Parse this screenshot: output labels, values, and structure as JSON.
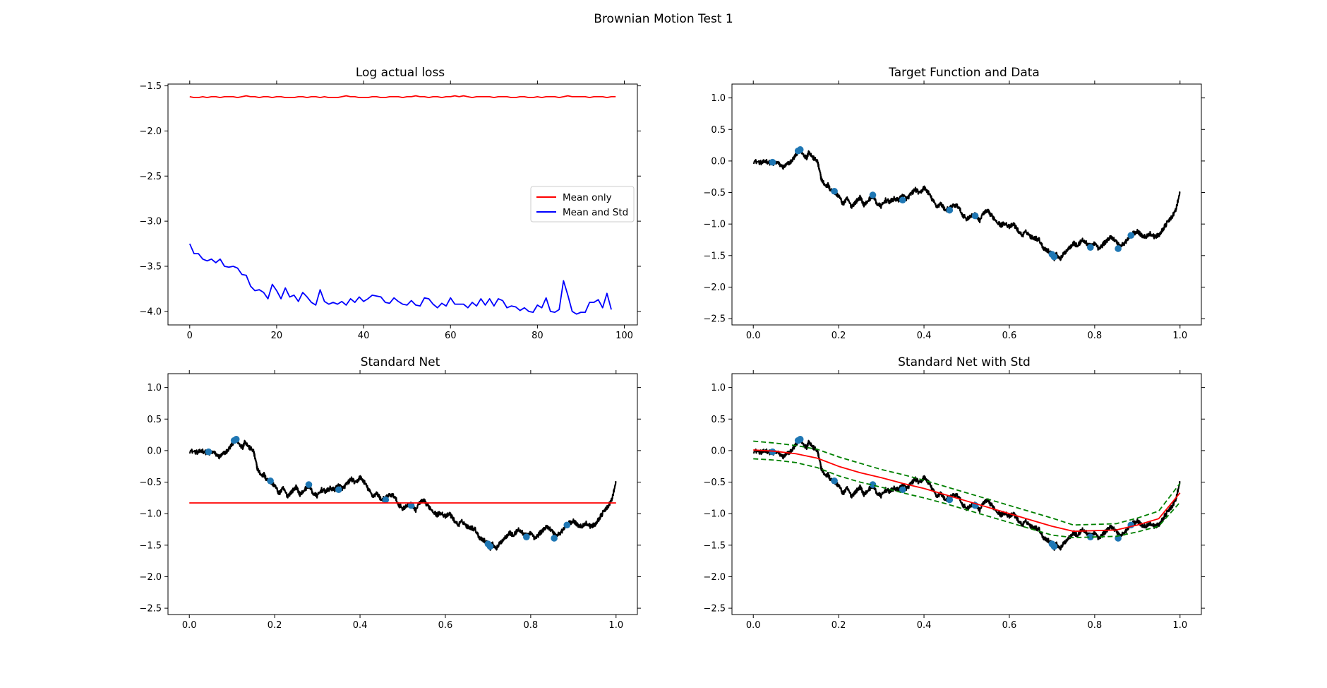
{
  "figure": {
    "title": "Brownian Motion Test 1"
  },
  "chart_data": [
    {
      "id": "loss",
      "type": "line",
      "title": "Log actual loss",
      "xlim": [
        -5,
        103
      ],
      "ylim": [
        -4.15,
        -1.48
      ],
      "xticks": [
        0,
        20,
        40,
        60,
        80,
        100
      ],
      "yticks": [
        -1.5,
        -2.0,
        -2.5,
        -3.0,
        -3.5,
        -4.0
      ],
      "legend": {
        "position": "center-right"
      },
      "series": [
        {
          "name": "Mean only",
          "color": "#ff0000",
          "values": [
            -1.62,
            -1.63,
            -1.63,
            -1.62,
            -1.63,
            -1.62,
            -1.62,
            -1.63,
            -1.62,
            -1.62,
            -1.62,
            -1.63,
            -1.62,
            -1.61,
            -1.62,
            -1.62,
            -1.63,
            -1.62,
            -1.62,
            -1.63,
            -1.62,
            -1.62,
            -1.63,
            -1.63,
            -1.63,
            -1.62,
            -1.62,
            -1.63,
            -1.62,
            -1.62,
            -1.63,
            -1.62,
            -1.63,
            -1.63,
            -1.63,
            -1.62,
            -1.61,
            -1.62,
            -1.62,
            -1.63,
            -1.63,
            -1.63,
            -1.62,
            -1.62,
            -1.63,
            -1.63,
            -1.62,
            -1.62,
            -1.62,
            -1.63,
            -1.62,
            -1.62,
            -1.61,
            -1.62,
            -1.62,
            -1.63,
            -1.62,
            -1.62,
            -1.63,
            -1.62,
            -1.62,
            -1.61,
            -1.62,
            -1.61,
            -1.62,
            -1.63,
            -1.62,
            -1.62,
            -1.62,
            -1.62,
            -1.63,
            -1.62,
            -1.62,
            -1.62,
            -1.63,
            -1.63,
            -1.62,
            -1.62,
            -1.63,
            -1.63,
            -1.62,
            -1.63,
            -1.62,
            -1.62,
            -1.62,
            -1.63,
            -1.62,
            -1.61,
            -1.62,
            -1.62,
            -1.62,
            -1.62,
            -1.63,
            -1.62,
            -1.62,
            -1.62,
            -1.63,
            -1.62,
            -1.62
          ]
        },
        {
          "name": "Mean and Std",
          "color": "#0000ff",
          "values": [
            -3.25,
            -3.36,
            -3.36,
            -3.42,
            -3.44,
            -3.42,
            -3.46,
            -3.42,
            -3.5,
            -3.51,
            -3.5,
            -3.52,
            -3.59,
            -3.6,
            -3.72,
            -3.77,
            -3.76,
            -3.79,
            -3.86,
            -3.7,
            -3.77,
            -3.86,
            -3.74,
            -3.84,
            -3.82,
            -3.89,
            -3.79,
            -3.84,
            -3.9,
            -3.93,
            -3.76,
            -3.89,
            -3.92,
            -3.9,
            -3.92,
            -3.89,
            -3.93,
            -3.86,
            -3.9,
            -3.84,
            -3.89,
            -3.86,
            -3.82,
            -3.83,
            -3.84,
            -3.9,
            -3.91,
            -3.85,
            -3.89,
            -3.92,
            -3.93,
            -3.88,
            -3.93,
            -3.94,
            -3.85,
            -3.86,
            -3.92,
            -3.96,
            -3.91,
            -3.94,
            -3.85,
            -3.92,
            -3.92,
            -3.92,
            -3.96,
            -3.9,
            -3.94,
            -3.86,
            -3.93,
            -3.86,
            -3.94,
            -3.86,
            -3.88,
            -3.96,
            -3.94,
            -3.95,
            -3.99,
            -3.96,
            -4.0,
            -4.01,
            -3.93,
            -3.96,
            -3.85,
            -4.0,
            -4.01,
            -3.98,
            -3.66,
            -3.82,
            -4.0,
            -4.03,
            -4.01,
            -4.01,
            -3.9,
            -3.9,
            -3.87,
            -3.96,
            -3.8,
            -3.98
          ]
        }
      ]
    },
    {
      "id": "target",
      "type": "line",
      "title": "Target Function and Data",
      "xlim": [
        -0.05,
        1.05
      ],
      "ylim": [
        -2.6,
        1.22
      ],
      "xticks": [
        0.0,
        0.2,
        0.4,
        0.6,
        0.8,
        1.0
      ],
      "yticks": [
        1.0,
        0.5,
        0.0,
        -0.5,
        -1.0,
        -1.5,
        -2.0,
        -2.5
      ],
      "series": [
        {
          "name": "",
          "kind": "path",
          "color": "#000000",
          "x": [
            0.0,
            0.02,
            0.03,
            0.045,
            0.055,
            0.07,
            0.08,
            0.09,
            0.1,
            0.105,
            0.11,
            0.115,
            0.125,
            0.13,
            0.14,
            0.15,
            0.155,
            0.16,
            0.17,
            0.175,
            0.18,
            0.19,
            0.2,
            0.21,
            0.22,
            0.23,
            0.24,
            0.25,
            0.26,
            0.27,
            0.28,
            0.29,
            0.3,
            0.31,
            0.32,
            0.33,
            0.34,
            0.35,
            0.36,
            0.37,
            0.38,
            0.39,
            0.4,
            0.41,
            0.42,
            0.43,
            0.44,
            0.45,
            0.46,
            0.47,
            0.48,
            0.49,
            0.5,
            0.51,
            0.52,
            0.53,
            0.54,
            0.55,
            0.56,
            0.57,
            0.58,
            0.59,
            0.6,
            0.61,
            0.62,
            0.63,
            0.64,
            0.65,
            0.66,
            0.67,
            0.68,
            0.69,
            0.7,
            0.705,
            0.71,
            0.72,
            0.73,
            0.74,
            0.75,
            0.76,
            0.77,
            0.78,
            0.79,
            0.8,
            0.81,
            0.82,
            0.83,
            0.84,
            0.85,
            0.86,
            0.87,
            0.88,
            0.89,
            0.9,
            0.91,
            0.92,
            0.93,
            0.94,
            0.95,
            0.96,
            0.97,
            0.98,
            0.99,
            1.0
          ],
          "y": [
            0.0,
            -0.03,
            0.0,
            -0.05,
            -0.02,
            -0.1,
            -0.05,
            0.0,
            0.1,
            0.16,
            0.2,
            0.12,
            0.05,
            0.15,
            0.05,
            0.0,
            -0.15,
            -0.3,
            -0.4,
            -0.38,
            -0.45,
            -0.5,
            -0.55,
            -0.68,
            -0.6,
            -0.72,
            -0.65,
            -0.58,
            -0.7,
            -0.62,
            -0.55,
            -0.68,
            -0.72,
            -0.62,
            -0.65,
            -0.6,
            -0.62,
            -0.55,
            -0.6,
            -0.52,
            -0.45,
            -0.52,
            -0.42,
            -0.5,
            -0.62,
            -0.72,
            -0.68,
            -0.78,
            -0.75,
            -0.7,
            -0.72,
            -0.85,
            -0.92,
            -0.88,
            -0.85,
            -0.95,
            -0.82,
            -0.8,
            -0.88,
            -0.95,
            -1.02,
            -0.98,
            -1.05,
            -1.0,
            -1.1,
            -1.18,
            -1.12,
            -1.2,
            -1.22,
            -1.25,
            -1.38,
            -1.42,
            -1.48,
            -1.55,
            -1.48,
            -1.55,
            -1.45,
            -1.38,
            -1.3,
            -1.35,
            -1.25,
            -1.3,
            -1.35,
            -1.3,
            -1.4,
            -1.32,
            -1.25,
            -1.2,
            -1.28,
            -1.35,
            -1.3,
            -1.22,
            -1.15,
            -1.12,
            -1.18,
            -1.2,
            -1.15,
            -1.2,
            -1.18,
            -1.08,
            -0.98,
            -0.9,
            -0.78,
            -0.5
          ]
        },
        {
          "name": "",
          "kind": "points",
          "color": "#1f77b4",
          "x": [
            0.045,
            0.105,
            0.11,
            0.19,
            0.28,
            0.35,
            0.46,
            0.52,
            0.7,
            0.705,
            0.79,
            0.855,
            0.885
          ],
          "y": [
            -0.02,
            0.16,
            0.18,
            -0.48,
            -0.54,
            -0.62,
            -0.78,
            -0.87,
            -1.48,
            -1.52,
            -1.37,
            -1.39,
            -1.18
          ]
        }
      ]
    },
    {
      "id": "standard",
      "type": "line",
      "title": "Standard Net",
      "xlim": [
        -0.05,
        1.05
      ],
      "ylim": [
        -2.6,
        1.22
      ],
      "xticks": [
        0.0,
        0.2,
        0.4,
        0.6,
        0.8,
        1.0
      ],
      "yticks": [
        1.0,
        0.5,
        0.0,
        -0.5,
        -1.0,
        -1.5,
        -2.0,
        -2.5
      ],
      "series": [
        {
          "name": "",
          "kind": "path",
          "ref": "target-path",
          "color": "#000000"
        },
        {
          "name": "",
          "kind": "points",
          "ref": "target-points",
          "color": "#1f77b4"
        },
        {
          "name": "",
          "kind": "line",
          "color": "#ff0000",
          "x": [
            0.0,
            1.0
          ],
          "y": [
            -0.83,
            -0.83
          ]
        }
      ]
    },
    {
      "id": "withstd",
      "type": "line",
      "title": "Standard Net with Std",
      "xlim": [
        -0.05,
        1.05
      ],
      "ylim": [
        -2.6,
        1.22
      ],
      "xticks": [
        0.0,
        0.2,
        0.4,
        0.6,
        0.8,
        1.0
      ],
      "yticks": [
        1.0,
        0.5,
        0.0,
        -0.5,
        -1.0,
        -1.5,
        -2.0,
        -2.5
      ],
      "series": [
        {
          "name": "",
          "kind": "path",
          "ref": "target-path",
          "color": "#000000"
        },
        {
          "name": "",
          "kind": "points",
          "ref": "target-points",
          "color": "#1f77b4"
        },
        {
          "name": "",
          "kind": "line",
          "color": "#ff0000",
          "x": [
            0.0,
            0.05,
            0.1,
            0.15,
            0.2,
            0.25,
            0.3,
            0.35,
            0.4,
            0.45,
            0.5,
            0.55,
            0.6,
            0.65,
            0.7,
            0.75,
            0.8,
            0.85,
            0.9,
            0.95,
            1.0
          ],
          "y": [
            0.01,
            -0.01,
            -0.05,
            -0.12,
            -0.25,
            -0.35,
            -0.43,
            -0.52,
            -0.6,
            -0.7,
            -0.8,
            -0.9,
            -1.0,
            -1.1,
            -1.2,
            -1.28,
            -1.27,
            -1.26,
            -1.18,
            -1.08,
            -0.67
          ]
        },
        {
          "name": "",
          "kind": "dashed",
          "color": "#008000",
          "x": [
            0.0,
            0.05,
            0.1,
            0.15,
            0.2,
            0.25,
            0.3,
            0.35,
            0.4,
            0.45,
            0.5,
            0.55,
            0.6,
            0.65,
            0.7,
            0.75,
            0.8,
            0.85,
            0.9,
            0.95,
            1.0
          ],
          "y": [
            0.15,
            0.12,
            0.08,
            0.02,
            -0.1,
            -0.2,
            -0.3,
            -0.38,
            -0.47,
            -0.57,
            -0.67,
            -0.77,
            -0.87,
            -0.97,
            -1.07,
            -1.18,
            -1.17,
            -1.16,
            -1.07,
            -0.96,
            -0.52
          ]
        },
        {
          "name": "",
          "kind": "dashed",
          "color": "#008000",
          "x": [
            0.0,
            0.05,
            0.1,
            0.15,
            0.2,
            0.25,
            0.3,
            0.35,
            0.4,
            0.45,
            0.5,
            0.55,
            0.6,
            0.65,
            0.7,
            0.75,
            0.8,
            0.85,
            0.9,
            0.95,
            1.0
          ],
          "y": [
            -0.13,
            -0.15,
            -0.19,
            -0.27,
            -0.4,
            -0.5,
            -0.58,
            -0.67,
            -0.75,
            -0.84,
            -0.94,
            -1.04,
            -1.14,
            -1.24,
            -1.34,
            -1.38,
            -1.37,
            -1.36,
            -1.29,
            -1.2,
            -0.82
          ]
        }
      ]
    }
  ]
}
